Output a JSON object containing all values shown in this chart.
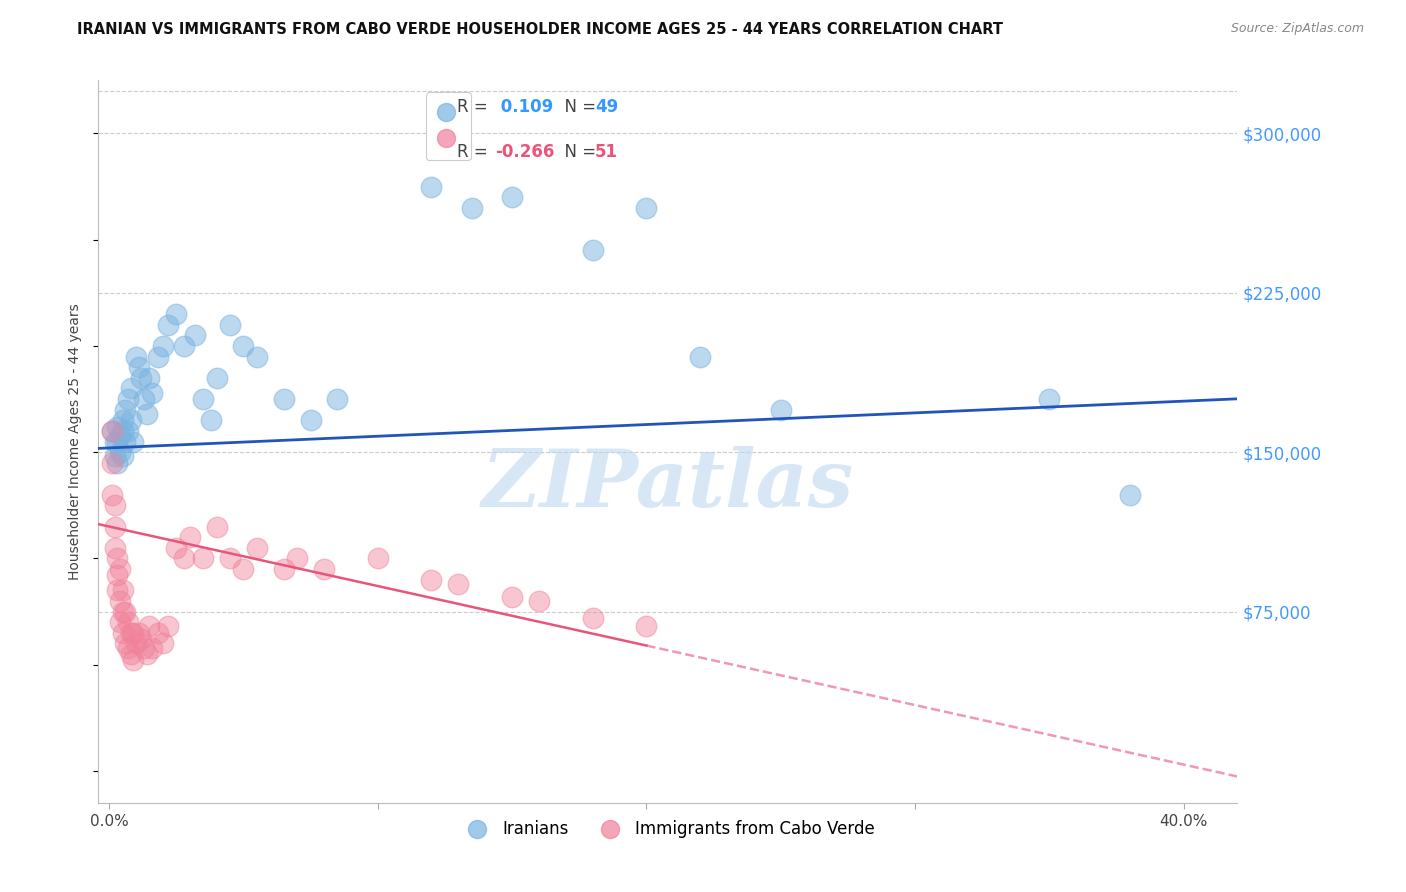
{
  "title": "IRANIAN VS IMMIGRANTS FROM CABO VERDE HOUSEHOLDER INCOME AGES 25 - 44 YEARS CORRELATION CHART",
  "source": "Source: ZipAtlas.com",
  "ylabel": "Householder Income Ages 25 - 44 years",
  "ytick_labels": [
    "$75,000",
    "$150,000",
    "$225,000",
    "$300,000"
  ],
  "ytick_vals": [
    75000,
    150000,
    225000,
    300000
  ],
  "ylim": [
    -15000,
    325000
  ],
  "xlim": [
    -0.004,
    0.42
  ],
  "xtick_vals": [
    0.0,
    0.1,
    0.2,
    0.3,
    0.4
  ],
  "xtick_labels": [
    "0.0%",
    "",
    "",
    "",
    "40.0%"
  ],
  "watermark": "ZIPatlas",
  "iranian_color": "#7ab3e0",
  "caboverde_color": "#f0819a",
  "iranian_line_color": "#2255bb",
  "caboverde_line_color": "#e8547a",
  "background_color": "#ffffff",
  "grid_color": "#cccccc",
  "tick_label_color_y": "#4499ff",
  "iranian_x": [
    0.001,
    0.002,
    0.002,
    0.003,
    0.003,
    0.003,
    0.004,
    0.004,
    0.005,
    0.005,
    0.005,
    0.006,
    0.006,
    0.007,
    0.007,
    0.008,
    0.008,
    0.009,
    0.01,
    0.011,
    0.012,
    0.013,
    0.014,
    0.015,
    0.016,
    0.018,
    0.02,
    0.022,
    0.025,
    0.028,
    0.032,
    0.035,
    0.038,
    0.04,
    0.045,
    0.05,
    0.055,
    0.065,
    0.075,
    0.085,
    0.12,
    0.135,
    0.15,
    0.18,
    0.2,
    0.22,
    0.25,
    0.35,
    0.38
  ],
  "iranian_y": [
    160000,
    155000,
    148000,
    162000,
    155000,
    145000,
    158000,
    150000,
    165000,
    160000,
    148000,
    170000,
    155000,
    175000,
    160000,
    180000,
    165000,
    155000,
    195000,
    190000,
    185000,
    175000,
    168000,
    185000,
    178000,
    195000,
    200000,
    210000,
    215000,
    200000,
    205000,
    175000,
    165000,
    185000,
    210000,
    200000,
    195000,
    175000,
    165000,
    175000,
    275000,
    265000,
    270000,
    245000,
    265000,
    195000,
    170000,
    175000,
    130000
  ],
  "caboverde_x": [
    0.001,
    0.001,
    0.001,
    0.002,
    0.002,
    0.002,
    0.003,
    0.003,
    0.003,
    0.004,
    0.004,
    0.004,
    0.005,
    0.005,
    0.005,
    0.006,
    0.006,
    0.007,
    0.007,
    0.008,
    0.008,
    0.009,
    0.009,
    0.01,
    0.011,
    0.012,
    0.013,
    0.014,
    0.015,
    0.016,
    0.018,
    0.02,
    0.022,
    0.025,
    0.028,
    0.03,
    0.035,
    0.04,
    0.045,
    0.05,
    0.055,
    0.065,
    0.07,
    0.08,
    0.1,
    0.12,
    0.13,
    0.15,
    0.16,
    0.18,
    0.2
  ],
  "caboverde_y": [
    160000,
    145000,
    130000,
    125000,
    115000,
    105000,
    100000,
    92000,
    85000,
    95000,
    80000,
    70000,
    85000,
    75000,
    65000,
    75000,
    60000,
    70000,
    58000,
    65000,
    55000,
    65000,
    52000,
    60000,
    65000,
    62000,
    58000,
    55000,
    68000,
    58000,
    65000,
    60000,
    68000,
    105000,
    100000,
    110000,
    100000,
    115000,
    100000,
    95000,
    105000,
    95000,
    100000,
    95000,
    100000,
    90000,
    88000,
    82000,
    80000,
    72000,
    68000
  ],
  "iranian_R": "0.109",
  "iranian_N": "49",
  "caboverde_R": "-0.266",
  "caboverde_N": "51"
}
